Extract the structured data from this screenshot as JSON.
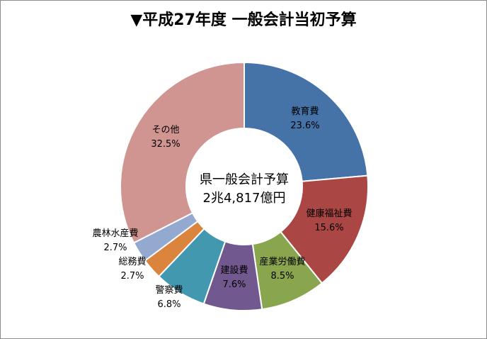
{
  "chart_data": {
    "type": "pie",
    "title": "▼平成27年度 一般会計当初予算",
    "center_label": [
      "県一般会計予算",
      "2兆4,817億円"
    ],
    "categories": [
      "教育費",
      "健康福祉費",
      "産業労働費",
      "建設費",
      "警察費",
      "総務費",
      "農林水産費",
      "その他"
    ],
    "values": [
      23.6,
      15.6,
      8.5,
      7.6,
      6.8,
      2.7,
      2.7,
      32.5
    ],
    "value_labels": [
      "23.6%",
      "15.6%",
      "8.5%",
      "7.6%",
      "6.8%",
      "2.7%",
      "2.7%",
      "32.5%"
    ],
    "colors": [
      "#4572a7",
      "#aa4643",
      "#89a54e",
      "#71588f",
      "#4198af",
      "#db843d",
      "#93a9cf",
      "#d09491"
    ],
    "donut": true,
    "start": "12 o'clock",
    "direction": "clockwise"
  }
}
